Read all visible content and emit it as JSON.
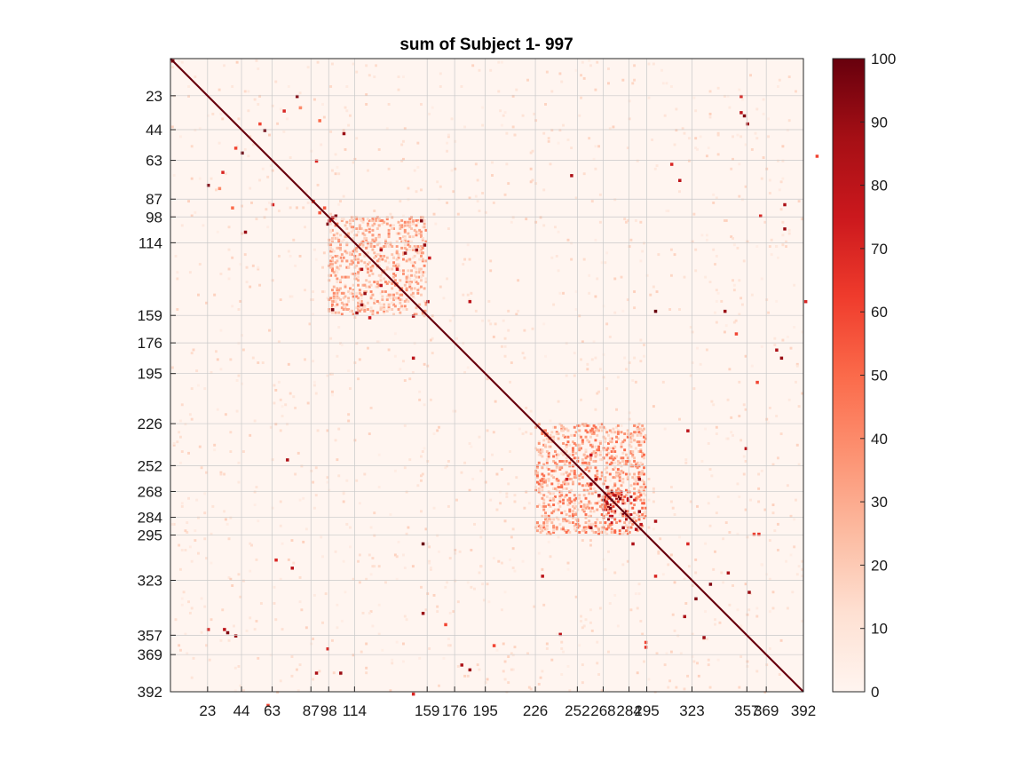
{
  "chart_data": {
    "type": "heatmap",
    "title": "sum of Subject 1- 997",
    "matrix_size": 392,
    "x_ticks": [
      23,
      44,
      63,
      87,
      98,
      114,
      159,
      176,
      195,
      226,
      252,
      268,
      284,
      295,
      323,
      357,
      369,
      392
    ],
    "y_ticks": [
      23,
      44,
      63,
      87,
      98,
      114,
      159,
      176,
      195,
      226,
      252,
      268,
      284,
      295,
      323,
      357,
      369,
      392
    ],
    "grid": true,
    "diagonal_value": 100,
    "clim": [
      0,
      100
    ],
    "colorbar": {
      "location": "right",
      "ticks": [
        0,
        10,
        20,
        30,
        40,
        50,
        60,
        70,
        80,
        90,
        100
      ]
    },
    "colormap": [
      "#fff5f0",
      "#fee0d2",
      "#fcbba1",
      "#fc9272",
      "#fb6a4a",
      "#ef3b2c",
      "#cb181d",
      "#a50f15",
      "#67000d"
    ],
    "blocks": [
      {
        "rows": [
          98,
          159
        ],
        "cols": [
          98,
          159
        ],
        "level": 25
      },
      {
        "rows": [
          226,
          295
        ],
        "cols": [
          226,
          295
        ],
        "level": 30
      },
      {
        "rows": [
          268,
          284
        ],
        "cols": [
          268,
          295
        ],
        "level": 60
      }
    ],
    "points": [
      [
        1,
        1,
        90
      ],
      [
        23,
        78,
        95
      ],
      [
        40,
        55,
        60
      ],
      [
        44,
        58,
        100
      ],
      [
        46,
        107,
        90
      ],
      [
        63,
        90,
        70
      ],
      [
        72,
        248,
        85
      ],
      [
        88,
        88,
        60
      ],
      [
        95,
        92,
        55
      ],
      [
        98,
        100,
        80
      ],
      [
        102,
        97,
        95
      ],
      [
        118,
        152,
        90
      ],
      [
        123,
        160,
        75
      ],
      [
        150,
        159,
        85
      ],
      [
        155,
        100,
        95
      ],
      [
        157,
        115,
        90
      ],
      [
        185,
        150,
        80
      ],
      [
        130,
        118,
        85
      ],
      [
        140,
        130,
        80
      ],
      [
        145,
        120,
        90
      ],
      [
        230,
        320,
        80
      ],
      [
        241,
        356,
        80
      ],
      [
        260,
        245,
        75
      ],
      [
        263,
        260,
        85
      ],
      [
        270,
        265,
        90
      ],
      [
        272,
        278,
        95
      ],
      [
        275,
        270,
        85
      ],
      [
        280,
        290,
        90
      ],
      [
        283,
        273,
        80
      ],
      [
        286,
        300,
        85
      ],
      [
        290,
        260,
        90
      ],
      [
        291,
        288,
        80
      ],
      [
        300,
        320,
        70
      ],
      [
        318,
        345,
        85
      ],
      [
        330,
        358,
        90
      ],
      [
        334,
        325,
        95
      ],
      [
        357,
        40,
        90
      ],
      [
        380,
        90,
        85
      ],
      [
        380,
        105,
        90
      ],
      [
        393,
        150,
        70
      ],
      [
        294,
        361,
        60
      ],
      [
        294,
        364,
        65
      ],
      [
        300,
        156,
        100
      ],
      [
        343,
        156,
        90
      ],
      [
        310,
        65,
        70
      ],
      [
        315,
        75,
        80
      ],
      [
        33,
        353,
        80
      ],
      [
        35,
        355,
        95
      ],
      [
        23,
        353,
        70
      ],
      [
        60,
        400,
        60
      ],
      [
        180,
        375,
        85
      ],
      [
        185,
        378,
        90
      ],
      [
        97,
        365,
        70
      ],
      [
        200,
        363,
        60
      ],
      [
        92,
        38,
        50
      ],
      [
        30,
        80,
        40
      ],
      [
        70,
        32,
        70
      ],
      [
        350,
        170,
        60
      ]
    ]
  }
}
